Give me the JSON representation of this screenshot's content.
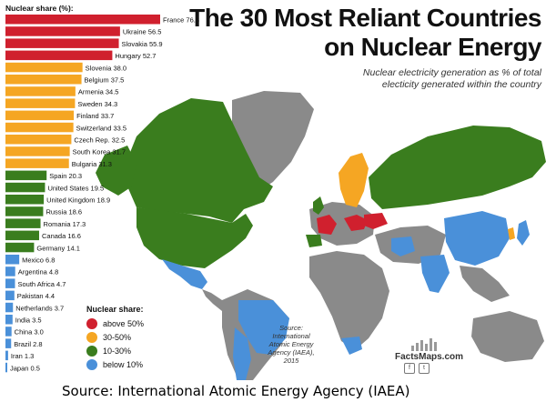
{
  "title": {
    "line1": "The 30 Most Reliant Countries",
    "line2": "on Nuclear Energy"
  },
  "subtitle": {
    "line1": "Nuclear electricity generation as % of total",
    "line2": "electicity generated within the country"
  },
  "chart_data": {
    "type": "bar",
    "orientation": "horizontal",
    "axis_label": "Nuclear share (%):",
    "categories": [
      "France",
      "Ukraine",
      "Slovakia",
      "Hungary",
      "Slovenia",
      "Belgium",
      "Armenia",
      "Sweden",
      "Finland",
      "Switzerland",
      "Czech Rep.",
      "South Korea",
      "Bulgaria",
      "Spain",
      "United States",
      "United Kingdom",
      "Russia",
      "Romania",
      "Canada",
      "Germany",
      "Mexico",
      "Argentina",
      "South Africa",
      "Pakistan",
      "Netherlands",
      "India",
      "China",
      "Brazil",
      "Iran",
      "Japan"
    ],
    "values": [
      76.3,
      56.5,
      55.9,
      52.7,
      38.0,
      37.5,
      34.5,
      34.3,
      33.7,
      33.5,
      32.5,
      31.7,
      31.3,
      20.3,
      19.5,
      18.9,
      18.6,
      17.3,
      16.6,
      14.1,
      6.8,
      4.8,
      4.7,
      4.4,
      3.7,
      3.5,
      3.0,
      2.8,
      1.3,
      0.5
    ],
    "value_labels": [
      "76.3",
      "56.5",
      "55.9",
      "52.7",
      "38.0",
      "37.5",
      "34.5",
      "34.3",
      "33.7",
      "33.5",
      "32.5",
      "31.7",
      "31.3",
      "20.3",
      "19.5",
      "18.9",
      "18.6",
      "17.3",
      "16.6",
      "14.1",
      "6.8",
      "4.8",
      "4.7",
      "4.4",
      "3.7",
      "3.5",
      "3.0",
      "2.8",
      "1.3",
      "0.5"
    ],
    "categories_scale": [
      "above 50%",
      "30-50%",
      "10-30%",
      "below 10%"
    ]
  },
  "legend": {
    "title": "Nuclear share:",
    "items": [
      {
        "label": "above 50%",
        "color": "#d0202e"
      },
      {
        "label": "30-50%",
        "color": "#f5a623"
      },
      {
        "label": "10-30%",
        "color": "#3a7d1e"
      },
      {
        "label": "below 10%",
        "color": "#4a90d9"
      }
    ]
  },
  "colors": {
    "above50": "#d0202e",
    "range30_50": "#f5a623",
    "range10_30": "#3a7d1e",
    "below10": "#4a90d9",
    "no_data": "#8a8a8a",
    "ocean": "#ffffff"
  },
  "source_note": {
    "line1": "Source:",
    "line2": "International",
    "line3": "Atomic Energy",
    "line4": "Agency (IAEA),",
    "line5": "2015"
  },
  "logo": {
    "text": "FactsMaps.com",
    "icons": [
      "facebook-icon",
      "twitter-icon"
    ]
  },
  "caption": "Source: International Atomic Energy Agency (IAEA)"
}
